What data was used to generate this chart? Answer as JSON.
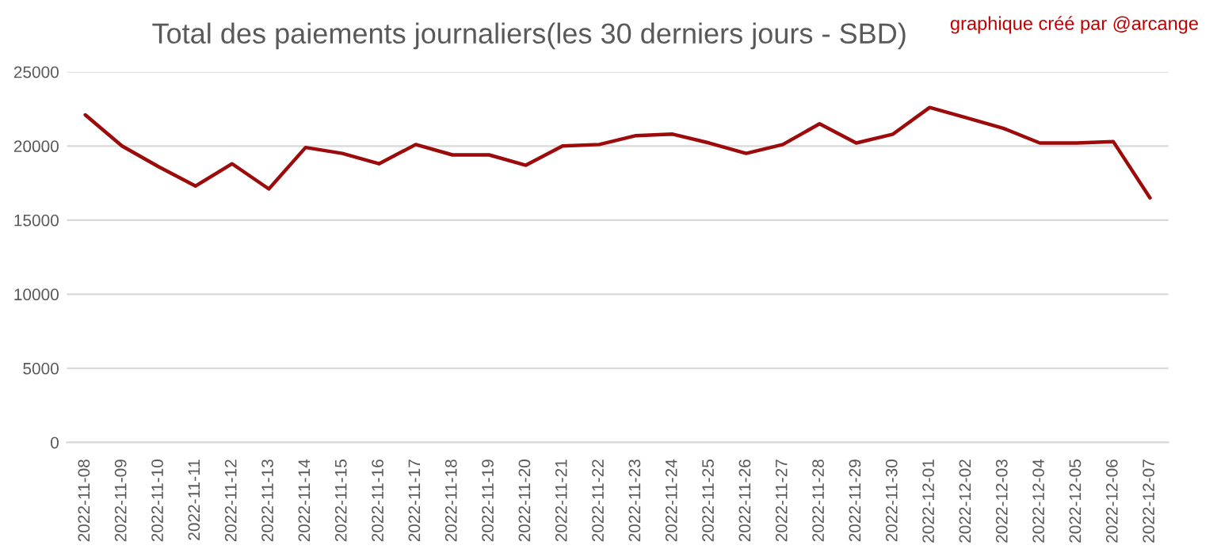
{
  "chart_data": {
    "type": "line",
    "title": "Total des paiements journaliers(les 30 derniers jours - SBD)",
    "annotations": [
      "graphique créé par @arcange"
    ],
    "categories": [
      "2022-11-08",
      "2022-11-09",
      "2022-11-10",
      "2022-11-11",
      "2022-11-12",
      "2022-11-13",
      "2022-11-14",
      "2022-11-15",
      "2022-11-16",
      "2022-11-17",
      "2022-11-18",
      "2022-11-19",
      "2022-11-20",
      "2022-11-21",
      "2022-11-22",
      "2022-11-23",
      "2022-11-24",
      "2022-11-25",
      "2022-11-26",
      "2022-11-27",
      "2022-11-28",
      "2022-11-29",
      "2022-11-30",
      "2022-12-01",
      "2022-12-02",
      "2022-12-03",
      "2022-12-04",
      "2022-12-05",
      "2022-12-06",
      "2022-12-07"
    ],
    "series": [
      {
        "color": "#9c0a0a",
        "values": [
          22100,
          20000,
          18600,
          17300,
          18800,
          17100,
          19900,
          19500,
          18800,
          20100,
          19400,
          19400,
          18700,
          20000,
          20100,
          20700,
          20800,
          20200,
          19500,
          20100,
          21500,
          20200,
          20800,
          22600,
          21900,
          21200,
          20200,
          20200,
          20300,
          16500
        ]
      }
    ],
    "ylim": [
      0,
      25000
    ],
    "yticks": [
      0,
      5000,
      10000,
      15000,
      20000,
      25000
    ],
    "grid": "y",
    "marker": "none",
    "line_style": "solid"
  }
}
